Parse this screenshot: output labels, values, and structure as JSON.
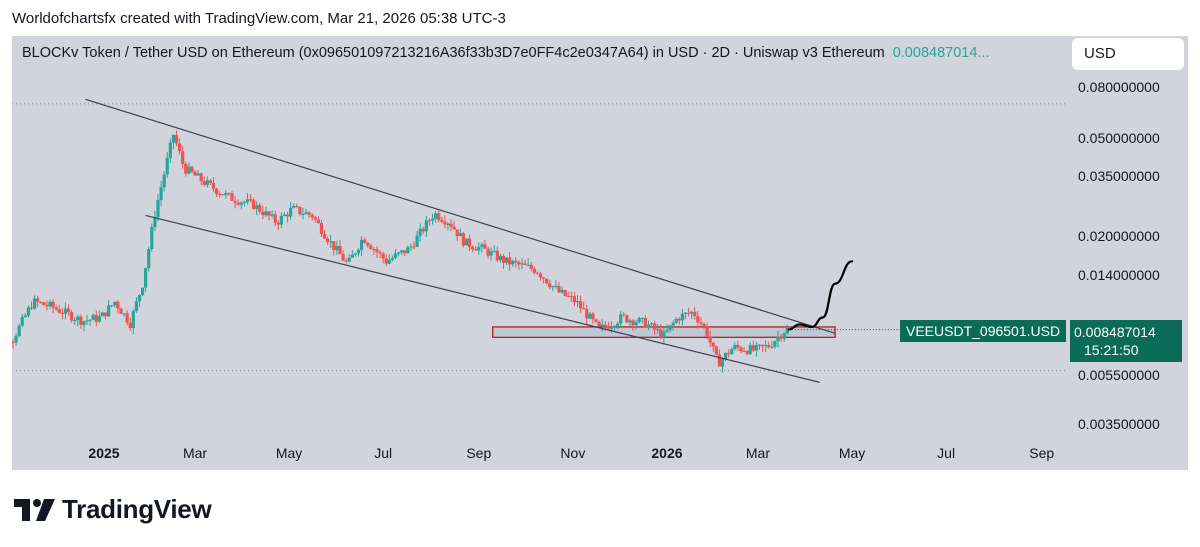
{
  "header": {
    "credit": "Worldofchartsfx created with TradingView.com, Mar 21, 2026 05:38 UTC-3"
  },
  "title": {
    "text": "BLOCKv Token / Tether USD on Ethereum (0x096501097213216A36f33b3D7e0FF4c2e0347A64) in USD · 2D · Uniswap v3 Ethereum",
    "price": "0.008487014..."
  },
  "currency_button": "USD",
  "symbol_tag": "VEEUSDT_096501.USD",
  "price_tag": {
    "price": "0.008487014",
    "countdown": "15:21:50"
  },
  "logo_text": "TradingView",
  "colors": {
    "up": "#26a69a",
    "down": "#ef5350",
    "background": "#d1d4dc",
    "label_bg": "#0a6b57",
    "zone_fill": "#bfc7d5",
    "zone_border": "#b22222"
  },
  "chart_data": {
    "type": "candlestick",
    "scale": "log",
    "ylim": [
      0.003,
      0.085
    ],
    "yticks": [
      "0.080000000",
      "0.050000000",
      "0.035000000",
      "0.020000000",
      "0.014000000",
      "0.008487014",
      "0.005500000",
      "0.003500000"
    ],
    "xticks": [
      {
        "label": "2025",
        "date": "2025-01-01",
        "bold": true
      },
      {
        "label": "Mar",
        "date": "2025-03-01"
      },
      {
        "label": "May",
        "date": "2025-05-01"
      },
      {
        "label": "Jul",
        "date": "2025-07-01"
      },
      {
        "label": "Sep",
        "date": "2025-09-01"
      },
      {
        "label": "Nov",
        "date": "2025-11-01"
      },
      {
        "label": "2026",
        "date": "2026-01-01",
        "bold": true
      },
      {
        "label": "Mar",
        "date": "2026-03-01"
      },
      {
        "label": "May",
        "date": "2026-05-01"
      },
      {
        "label": "Jul",
        "date": "2026-07-01"
      },
      {
        "label": "Sep",
        "date": "2026-09-01"
      }
    ],
    "last_price": 0.008487014,
    "reference_levels": [
      0.069,
      0.0058
    ],
    "price_path": [
      [
        "2024-10-18",
        0.0086
      ],
      [
        "2024-11-05",
        0.0078
      ],
      [
        "2024-11-18",
        0.011
      ],
      [
        "2024-11-30",
        0.0105
      ],
      [
        "2024-12-20",
        0.0092
      ],
      [
        "2025-01-01",
        0.0095
      ],
      [
        "2025-01-10",
        0.011
      ],
      [
        "2025-01-20",
        0.009
      ],
      [
        "2025-01-28",
        0.013
      ],
      [
        "2025-02-05",
        0.025
      ],
      [
        "2025-02-10",
        0.034
      ],
      [
        "2025-02-17",
        0.052
      ],
      [
        "2025-02-24",
        0.038
      ],
      [
        "2025-03-10",
        0.033
      ],
      [
        "2025-03-25",
        0.029
      ],
      [
        "2025-04-10",
        0.027
      ],
      [
        "2025-04-25",
        0.023
      ],
      [
        "2025-05-05",
        0.026
      ],
      [
        "2025-05-18",
        0.0245
      ],
      [
        "2025-05-30",
        0.019
      ],
      [
        "2025-06-10",
        0.0155
      ],
      [
        "2025-06-20",
        0.02
      ],
      [
        "2025-07-05",
        0.016
      ],
      [
        "2025-07-20",
        0.018
      ],
      [
        "2025-08-05",
        0.025
      ],
      [
        "2025-08-15",
        0.023
      ],
      [
        "2025-08-25",
        0.019
      ],
      [
        "2025-09-05",
        0.018
      ],
      [
        "2025-09-20",
        0.016
      ],
      [
        "2025-10-10",
        0.0148
      ],
      [
        "2025-10-25",
        0.012
      ],
      [
        "2025-11-05",
        0.011
      ],
      [
        "2025-11-20",
        0.0085
      ],
      [
        "2025-12-05",
        0.0095
      ],
      [
        "2025-12-20",
        0.009
      ],
      [
        "2026-01-01",
        0.008
      ],
      [
        "2026-01-10",
        0.0095
      ],
      [
        "2026-01-20",
        0.01
      ],
      [
        "2026-01-28",
        0.0085
      ],
      [
        "2026-02-05",
        0.0062
      ],
      [
        "2026-02-15",
        0.0072
      ],
      [
        "2026-03-01",
        0.007
      ],
      [
        "2026-03-10",
        0.0073
      ],
      [
        "2026-03-21",
        0.0085
      ]
    ],
    "drawings": {
      "upper_trendline": [
        [
          "2024-12-20",
          0.072
        ],
        [
          "2026-04-20",
          0.0082
        ]
      ],
      "lower_trendline": [
        [
          "2025-01-28",
          0.0245
        ],
        [
          "2026-04-10",
          0.0052
        ]
      ],
      "zone": {
        "from": "2025-09-10",
        "to": "2026-04-20",
        "low": 0.0079,
        "high": 0.0087
      },
      "projection": [
        [
          "2026-03-21",
          0.0085
        ],
        [
          "2026-03-28",
          0.0089
        ],
        [
          "2026-04-05",
          0.0087
        ],
        [
          "2026-04-12",
          0.0095
        ],
        [
          "2026-04-20",
          0.013
        ],
        [
          "2026-05-01",
          0.016
        ]
      ]
    }
  }
}
